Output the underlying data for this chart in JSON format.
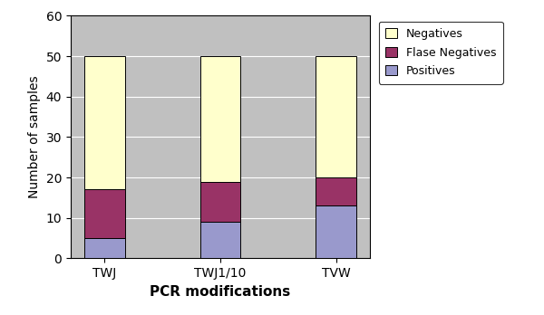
{
  "categories": [
    "TWJ",
    "TWJ1/10",
    "TVW"
  ],
  "positives": [
    5,
    9,
    13
  ],
  "false_negatives": [
    12,
    10,
    7
  ],
  "negatives": [
    33,
    31,
    30
  ],
  "colors": {
    "positives": "#9999cc",
    "false_negatives": "#993366",
    "negatives": "#ffffcc"
  },
  "title": "",
  "xlabel": "PCR modifications",
  "ylabel": "Number of samples",
  "ylim": [
    0,
    60
  ],
  "yticks": [
    0,
    10,
    20,
    30,
    40,
    50,
    60
  ],
  "legend_labels": [
    "Negatives",
    "Flase Negatives",
    "Positives"
  ],
  "bar_width": 0.35,
  "plot_bg_color": "#c0c0c0",
  "fig_bg_color": "#ffffff",
  "grid_color": "#ffffff"
}
